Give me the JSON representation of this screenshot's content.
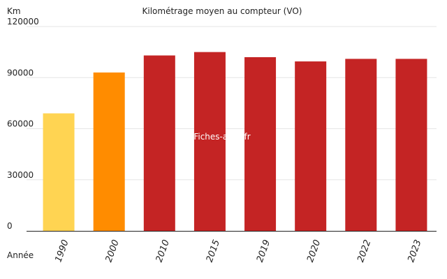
{
  "chart_data": {
    "type": "bar",
    "title": "Kilométrage moyen au compteur (VO)",
    "ylabel": "Km",
    "xlabel": "Année",
    "watermark": "Fiches-auto.fr",
    "ylim": [
      0,
      120000
    ],
    "yticks": [
      0,
      30000,
      60000,
      90000,
      120000
    ],
    "categories": [
      "1990",
      "2000",
      "2010",
      "2015",
      "2019",
      "2020",
      "2022",
      "2023"
    ],
    "values": [
      69000,
      93000,
      103000,
      105000,
      102000,
      99500,
      101000,
      101000
    ],
    "colors": [
      "#ffd452",
      "#ff8c00",
      "#c42424",
      "#c42424",
      "#c42424",
      "#c42424",
      "#c42424",
      "#c42424"
    ],
    "grid": true,
    "legend": "none"
  }
}
